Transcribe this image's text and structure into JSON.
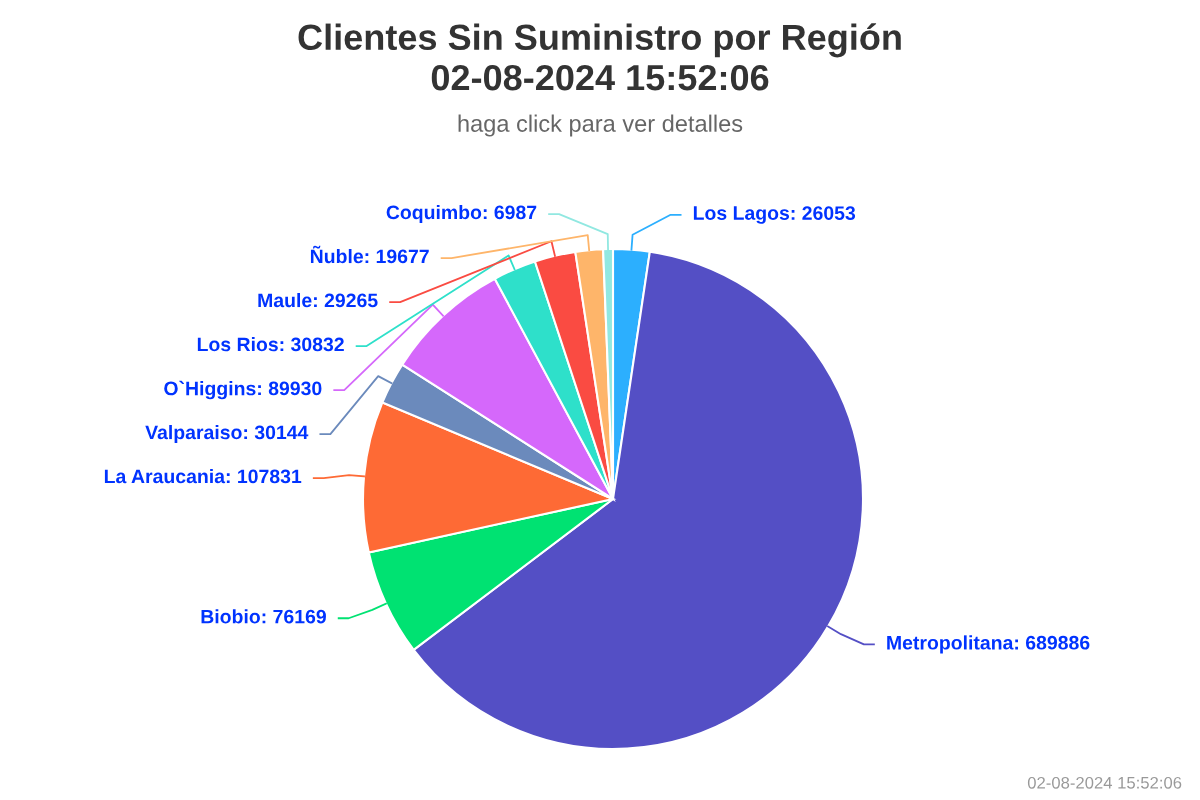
{
  "chart_data": {
    "type": "pie",
    "title": "Clientes Sin Suministro por Región\n02-08-2024 15:52:06",
    "subtitle": "haga click para ver detalles",
    "categories": [
      "Los Lagos",
      "Metropolitana",
      "Biobio",
      "La Araucania",
      "Valparaiso",
      "O`Higgins",
      "Los Rios",
      "Maule",
      "Ñuble",
      "Coquimbo"
    ],
    "values": [
      26053,
      689886,
      76169,
      107831,
      30144,
      89930,
      30832,
      29265,
      19677,
      6987
    ],
    "colors": [
      "#2caffe",
      "#544fc5",
      "#00e272",
      "#fe6a35",
      "#6b8abc",
      "#d568fb",
      "#2ee0ca",
      "#fa4b42",
      "#feb56a",
      "#91e8e1"
    ],
    "value_labels": [
      ": 26053",
      ": 689886",
      ": 76169",
      ": 107831",
      ": 30144",
      ": 89930",
      ": 30832",
      ": 29265",
      ": 19677",
      ": 6987"
    ],
    "annotations": [
      "02-08-2024 15:52:06"
    ]
  }
}
